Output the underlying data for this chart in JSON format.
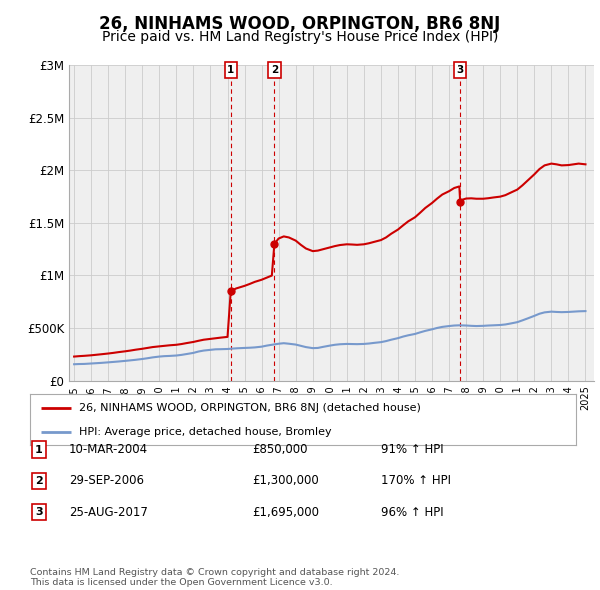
{
  "title": "26, NINHAMS WOOD, ORPINGTON, BR6 8NJ",
  "subtitle": "Price paid vs. HM Land Registry's House Price Index (HPI)",
  "title_fontsize": 12,
  "subtitle_fontsize": 10,
  "background_color": "#ffffff",
  "grid_color": "#cccccc",
  "plot_bg_color": "#efefef",
  "ylim": [
    0,
    3000000
  ],
  "yticks": [
    0,
    500000,
    1000000,
    1500000,
    2000000,
    2500000,
    3000000
  ],
  "ytick_labels": [
    "£0",
    "£500K",
    "£1M",
    "£1.5M",
    "£2M",
    "£2.5M",
    "£3M"
  ],
  "xlim_start": 1994.7,
  "xlim_end": 2025.5,
  "xticks": [
    1995,
    1996,
    1997,
    1998,
    1999,
    2000,
    2001,
    2002,
    2003,
    2004,
    2005,
    2006,
    2007,
    2008,
    2009,
    2010,
    2011,
    2012,
    2013,
    2014,
    2015,
    2016,
    2017,
    2018,
    2019,
    2020,
    2021,
    2022,
    2023,
    2024,
    2025
  ],
  "sale_color": "#cc0000",
  "hpi_color": "#7799cc",
  "vline_color": "#cc0000",
  "sale_dot_color": "#cc0000",
  "label1": "26, NINHAMS WOOD, ORPINGTON, BR6 8NJ (detached house)",
  "label2": "HPI: Average price, detached house, Bromley",
  "transactions": [
    {
      "num": 1,
      "date": "10-MAR-2004",
      "x": 2004.19,
      "price": 850000,
      "pct": "91%",
      "arrow": "↑"
    },
    {
      "num": 2,
      "date": "29-SEP-2006",
      "x": 2006.75,
      "price": 1300000,
      "pct": "170%",
      "arrow": "↑"
    },
    {
      "num": 3,
      "date": "25-AUG-2017",
      "x": 2017.65,
      "price": 1695000,
      "pct": "96%",
      "arrow": "↑"
    }
  ],
  "footer": "Contains HM Land Registry data © Crown copyright and database right 2024.\nThis data is licensed under the Open Government Licence v3.0.",
  "hpi_data": [
    [
      1995.0,
      155000
    ],
    [
      1995.3,
      157000
    ],
    [
      1995.6,
      158000
    ],
    [
      1996.0,
      162000
    ],
    [
      1996.3,
      165000
    ],
    [
      1996.6,
      168000
    ],
    [
      1997.0,
      173000
    ],
    [
      1997.3,
      177000
    ],
    [
      1997.6,
      181000
    ],
    [
      1998.0,
      187000
    ],
    [
      1998.3,
      192000
    ],
    [
      1998.6,
      197000
    ],
    [
      1999.0,
      205000
    ],
    [
      1999.3,
      212000
    ],
    [
      1999.6,
      220000
    ],
    [
      2000.0,
      228000
    ],
    [
      2000.3,
      232000
    ],
    [
      2000.6,
      234000
    ],
    [
      2001.0,
      238000
    ],
    [
      2001.3,
      244000
    ],
    [
      2001.6,
      252000
    ],
    [
      2002.0,
      263000
    ],
    [
      2002.3,
      276000
    ],
    [
      2002.6,
      285000
    ],
    [
      2003.0,
      292000
    ],
    [
      2003.3,
      297000
    ],
    [
      2003.6,
      298000
    ],
    [
      2004.0,
      300000
    ],
    [
      2004.3,
      304000
    ],
    [
      2004.6,
      307000
    ],
    [
      2005.0,
      310000
    ],
    [
      2005.3,
      312000
    ],
    [
      2005.6,
      315000
    ],
    [
      2006.0,
      322000
    ],
    [
      2006.3,
      332000
    ],
    [
      2006.6,
      340000
    ],
    [
      2007.0,
      350000
    ],
    [
      2007.3,
      355000
    ],
    [
      2007.6,
      350000
    ],
    [
      2008.0,
      342000
    ],
    [
      2008.3,
      330000
    ],
    [
      2008.6,
      318000
    ],
    [
      2009.0,
      308000
    ],
    [
      2009.3,
      310000
    ],
    [
      2009.6,
      320000
    ],
    [
      2010.0,
      332000
    ],
    [
      2010.3,
      340000
    ],
    [
      2010.6,
      345000
    ],
    [
      2011.0,
      348000
    ],
    [
      2011.3,
      347000
    ],
    [
      2011.6,
      346000
    ],
    [
      2012.0,
      348000
    ],
    [
      2012.3,
      352000
    ],
    [
      2012.6,
      358000
    ],
    [
      2013.0,
      365000
    ],
    [
      2013.3,
      375000
    ],
    [
      2013.6,
      388000
    ],
    [
      2014.0,
      403000
    ],
    [
      2014.3,
      418000
    ],
    [
      2014.6,
      430000
    ],
    [
      2015.0,
      443000
    ],
    [
      2015.3,
      458000
    ],
    [
      2015.6,
      472000
    ],
    [
      2016.0,
      487000
    ],
    [
      2016.3,
      500000
    ],
    [
      2016.6,
      510000
    ],
    [
      2017.0,
      518000
    ],
    [
      2017.3,
      523000
    ],
    [
      2017.6,
      525000
    ],
    [
      2018.0,
      523000
    ],
    [
      2018.3,
      520000
    ],
    [
      2018.6,
      518000
    ],
    [
      2019.0,
      520000
    ],
    [
      2019.3,
      523000
    ],
    [
      2019.6,
      525000
    ],
    [
      2020.0,
      528000
    ],
    [
      2020.3,
      533000
    ],
    [
      2020.6,
      542000
    ],
    [
      2021.0,
      555000
    ],
    [
      2021.3,
      572000
    ],
    [
      2021.6,
      590000
    ],
    [
      2022.0,
      615000
    ],
    [
      2022.3,
      635000
    ],
    [
      2022.6,
      648000
    ],
    [
      2023.0,
      655000
    ],
    [
      2023.3,
      652000
    ],
    [
      2023.6,
      650000
    ],
    [
      2024.0,
      652000
    ],
    [
      2024.3,
      655000
    ],
    [
      2024.6,
      658000
    ],
    [
      2025.0,
      660000
    ]
  ],
  "sale_data": [
    [
      1995.0,
      228000
    ],
    [
      1995.3,
      232000
    ],
    [
      1995.6,
      235000
    ],
    [
      1996.0,
      240000
    ],
    [
      1996.3,
      245000
    ],
    [
      1996.6,
      250000
    ],
    [
      1997.0,
      257000
    ],
    [
      1997.3,
      263000
    ],
    [
      1997.6,
      270000
    ],
    [
      1998.0,
      278000
    ],
    [
      1998.3,
      285000
    ],
    [
      1998.6,
      293000
    ],
    [
      1999.0,
      302000
    ],
    [
      1999.3,
      310000
    ],
    [
      1999.6,
      318000
    ],
    [
      2000.0,
      325000
    ],
    [
      2000.3,
      330000
    ],
    [
      2000.6,
      335000
    ],
    [
      2001.0,
      340000
    ],
    [
      2001.3,
      347000
    ],
    [
      2001.6,
      356000
    ],
    [
      2002.0,
      367000
    ],
    [
      2002.3,
      378000
    ],
    [
      2002.6,
      388000
    ],
    [
      2003.0,
      396000
    ],
    [
      2003.3,
      402000
    ],
    [
      2003.6,
      408000
    ],
    [
      2004.0,
      415000
    ],
    [
      2004.19,
      850000
    ],
    [
      2004.5,
      875000
    ],
    [
      2004.8,
      890000
    ],
    [
      2005.0,
      900000
    ],
    [
      2005.3,
      918000
    ],
    [
      2005.6,
      938000
    ],
    [
      2006.0,
      958000
    ],
    [
      2006.3,
      978000
    ],
    [
      2006.6,
      998000
    ],
    [
      2006.75,
      1300000
    ],
    [
      2007.0,
      1350000
    ],
    [
      2007.3,
      1370000
    ],
    [
      2007.6,
      1360000
    ],
    [
      2008.0,
      1330000
    ],
    [
      2008.3,
      1290000
    ],
    [
      2008.6,
      1255000
    ],
    [
      2009.0,
      1230000
    ],
    [
      2009.3,
      1235000
    ],
    [
      2009.6,
      1248000
    ],
    [
      2010.0,
      1265000
    ],
    [
      2010.3,
      1278000
    ],
    [
      2010.6,
      1288000
    ],
    [
      2011.0,
      1295000
    ],
    [
      2011.3,
      1293000
    ],
    [
      2011.6,
      1290000
    ],
    [
      2012.0,
      1295000
    ],
    [
      2012.3,
      1305000
    ],
    [
      2012.6,
      1318000
    ],
    [
      2013.0,
      1335000
    ],
    [
      2013.3,
      1360000
    ],
    [
      2013.6,
      1395000
    ],
    [
      2014.0,
      1435000
    ],
    [
      2014.3,
      1475000
    ],
    [
      2014.6,
      1513000
    ],
    [
      2015.0,
      1552000
    ],
    [
      2015.3,
      1595000
    ],
    [
      2015.6,
      1640000
    ],
    [
      2016.0,
      1688000
    ],
    [
      2016.3,
      1730000
    ],
    [
      2016.6,
      1768000
    ],
    [
      2017.0,
      1800000
    ],
    [
      2017.3,
      1830000
    ],
    [
      2017.6,
      1845000
    ],
    [
      2017.65,
      1695000
    ],
    [
      2017.8,
      1720000
    ],
    [
      2018.0,
      1730000
    ],
    [
      2018.3,
      1732000
    ],
    [
      2018.6,
      1728000
    ],
    [
      2019.0,
      1728000
    ],
    [
      2019.3,
      1733000
    ],
    [
      2019.6,
      1740000
    ],
    [
      2020.0,
      1748000
    ],
    [
      2020.3,
      1762000
    ],
    [
      2020.6,
      1785000
    ],
    [
      2021.0,
      1815000
    ],
    [
      2021.3,
      1855000
    ],
    [
      2021.6,
      1900000
    ],
    [
      2022.0,
      1960000
    ],
    [
      2022.3,
      2010000
    ],
    [
      2022.6,
      2045000
    ],
    [
      2023.0,
      2062000
    ],
    [
      2023.3,
      2055000
    ],
    [
      2023.6,
      2045000
    ],
    [
      2024.0,
      2048000
    ],
    [
      2024.3,
      2055000
    ],
    [
      2024.6,
      2062000
    ],
    [
      2025.0,
      2055000
    ]
  ]
}
